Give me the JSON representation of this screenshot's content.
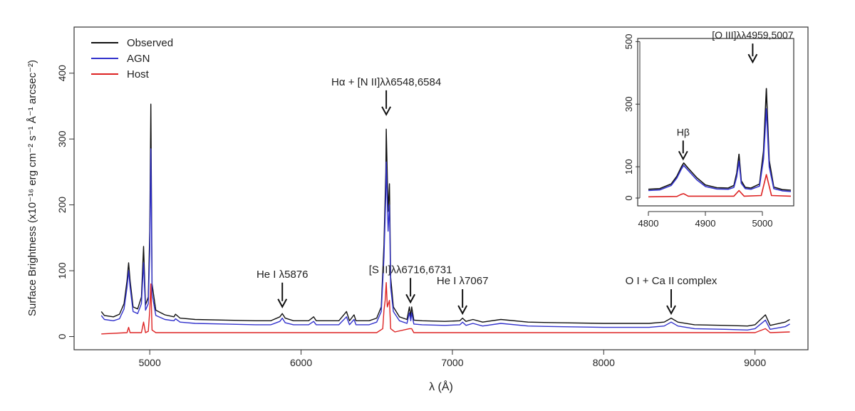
{
  "chart_data": [
    {
      "type": "line",
      "xlabel": "λ (Å)",
      "ylabel": "Surface Brightness (x10⁻¹⁶ erg cm⁻² s⁻¹ Å⁻¹ arcsec⁻²)",
      "xlim": [
        4500,
        9350
      ],
      "ylim": [
        -20,
        470
      ],
      "xticks": [
        5000,
        6000,
        7000,
        8000,
        9000
      ],
      "yticks": [
        0,
        100,
        200,
        300,
        400
      ],
      "grid": false,
      "legend_position": "top-left",
      "legend": [
        "Observed",
        "AGN",
        "Host"
      ],
      "series": [
        {
          "name": "Observed",
          "color": "#111111",
          "x": [
            4680,
            4700,
            4760,
            4800,
            4830,
            4850,
            4860,
            4870,
            4890,
            4920,
            4945,
            4959,
            4972,
            4990,
            5000,
            5007,
            5015,
            5040,
            5100,
            5160,
            5170,
            5200,
            5300,
            5500,
            5700,
            5800,
            5860,
            5876,
            5895,
            5950,
            6050,
            6083,
            6100,
            6250,
            6300,
            6320,
            6350,
            6363,
            6380,
            6450,
            6500,
            6530,
            6548,
            6560,
            6563,
            6575,
            6584,
            6592,
            6610,
            6650,
            6700,
            6716,
            6725,
            6731,
            6745,
            6800,
            6950,
            7050,
            7067,
            7090,
            7136,
            7200,
            7320,
            7500,
            7700,
            8000,
            8300,
            8400,
            8446,
            8490,
            8600,
            8800,
            8950,
            9000,
            9069,
            9100,
            9200,
            9230
          ],
          "y": [
            38,
            32,
            30,
            34,
            50,
            85,
            112,
            85,
            45,
            42,
            60,
            137,
            48,
            60,
            160,
            353,
            80,
            40,
            33,
            30,
            34,
            28,
            26,
            25,
            24,
            24,
            30,
            35,
            28,
            24,
            24,
            30,
            24,
            24,
            38,
            24,
            33,
            24,
            24,
            24,
            28,
            45,
            140,
            250,
            315,
            190,
            232,
            90,
            45,
            30,
            26,
            45,
            30,
            45,
            25,
            24,
            23,
            24,
            28,
            23,
            26,
            22,
            26,
            22,
            21,
            20,
            20,
            22,
            28,
            22,
            18,
            17,
            16,
            18,
            33,
            17,
            22,
            26
          ]
        },
        {
          "name": "AGN",
          "color": "#3232cc",
          "x": [
            4680,
            4700,
            4760,
            4800,
            4830,
            4850,
            4860,
            4870,
            4890,
            4920,
            4945,
            4959,
            4972,
            4990,
            5000,
            5007,
            5015,
            5040,
            5100,
            5160,
            5170,
            5200,
            5300,
            5500,
            5700,
            5800,
            5860,
            5876,
            5895,
            5950,
            6050,
            6083,
            6100,
            6250,
            6300,
            6320,
            6350,
            6363,
            6380,
            6450,
            6500,
            6530,
            6548,
            6560,
            6563,
            6575,
            6584,
            6592,
            6610,
            6650,
            6700,
            6716,
            6725,
            6731,
            6745,
            6800,
            6950,
            7050,
            7067,
            7090,
            7136,
            7200,
            7320,
            7500,
            7700,
            8000,
            8300,
            8400,
            8446,
            8490,
            8600,
            8800,
            8950,
            9000,
            9069,
            9100,
            9200,
            9230
          ],
          "y": [
            32,
            26,
            24,
            27,
            42,
            75,
            100,
            75,
            38,
            35,
            50,
            112,
            40,
            50,
            130,
            285,
            65,
            32,
            26,
            24,
            27,
            22,
            20,
            19,
            18,
            18,
            23,
            28,
            21,
            18,
            18,
            23,
            18,
            18,
            30,
            18,
            26,
            18,
            18,
            18,
            22,
            38,
            120,
            215,
            265,
            160,
            200,
            75,
            38,
            24,
            20,
            36,
            24,
            36,
            19,
            18,
            17,
            18,
            22,
            17,
            20,
            16,
            20,
            16,
            15,
            14,
            14,
            16,
            22,
            16,
            12,
            11,
            10,
            12,
            25,
            11,
            15,
            19
          ]
        },
        {
          "name": "Host",
          "color": "#dd2222",
          "x": [
            4680,
            4850,
            4860,
            4870,
            4945,
            4959,
            4972,
            4990,
            5000,
            5007,
            5015,
            5040,
            5500,
            6000,
            6500,
            6540,
            6548,
            6556,
            6563,
            6570,
            6584,
            6592,
            6620,
            6716,
            6731,
            6745,
            7000,
            8000,
            9000,
            9069,
            9100,
            9230
          ],
          "y": [
            4,
            6,
            14,
            6,
            6,
            22,
            6,
            8,
            40,
            80,
            10,
            6,
            6,
            6,
            6,
            12,
            40,
            55,
            82,
            45,
            55,
            12,
            7,
            12,
            12,
            6,
            6,
            6,
            6,
            12,
            6,
            7
          ]
        }
      ],
      "annotations": [
        {
          "text": "Hα + [N II]λλ6548,6584",
          "x": 6563,
          "y": 335
        },
        {
          "text": "[S II]λλ6716,6731",
          "x": 6723,
          "y": 50
        },
        {
          "text": "He I λ5876",
          "x": 5876,
          "y": 43
        },
        {
          "text": "He I λ7067",
          "x": 7067,
          "y": 33
        },
        {
          "text": "O I + Ca II complex",
          "x": 8446,
          "y": 33
        }
      ]
    },
    {
      "type": "line",
      "xlabel": "",
      "ylabel": "",
      "xlim": [
        4795,
        5055
      ],
      "ylim": [
        -25,
        510
      ],
      "xticks": [
        4800,
        4900,
        5000
      ],
      "yticks": [
        0,
        100,
        300,
        500
      ],
      "grid": false,
      "series": [
        {
          "name": "Observed",
          "color": "#111111",
          "x": [
            4800,
            4820,
            4840,
            4850,
            4858,
            4862,
            4870,
            4885,
            4900,
            4920,
            4940,
            4950,
            4955,
            4959,
            4963,
            4970,
            4980,
            4995,
            5002,
            5007,
            5012,
            5020,
            5035,
            5050
          ],
          "y": [
            28,
            30,
            45,
            70,
            100,
            112,
            95,
            65,
            42,
            33,
            32,
            40,
            80,
            140,
            55,
            34,
            32,
            45,
            150,
            350,
            120,
            35,
            27,
            25
          ]
        },
        {
          "name": "AGN",
          "color": "#3232cc",
          "x": [
            4800,
            4820,
            4840,
            4850,
            4858,
            4862,
            4870,
            4885,
            4900,
            4920,
            4940,
            4950,
            4955,
            4959,
            4963,
            4970,
            4980,
            4995,
            5002,
            5007,
            5012,
            5020,
            5035,
            5050
          ],
          "y": [
            24,
            26,
            40,
            64,
            93,
            104,
            88,
            58,
            37,
            29,
            28,
            34,
            68,
            118,
            47,
            30,
            28,
            38,
            125,
            285,
            100,
            30,
            23,
            21
          ]
        },
        {
          "name": "Host",
          "color": "#dd2222",
          "x": [
            4800,
            4850,
            4858,
            4862,
            4870,
            4950,
            4959,
            4968,
            4998,
            5007,
            5016,
            5050
          ],
          "y": [
            4,
            5,
            12,
            14,
            6,
            6,
            24,
            6,
            8,
            75,
            8,
            6
          ]
        }
      ],
      "annotations": [
        {
          "text": "Hβ",
          "x": 4861,
          "y": 120
        },
        {
          "text": "[O III]λλ4959,5007",
          "x": 4983,
          "y": 430
        }
      ]
    }
  ]
}
